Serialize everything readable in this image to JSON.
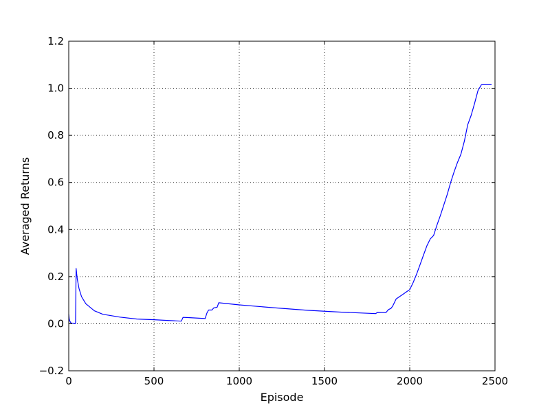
{
  "chart_data": {
    "type": "line",
    "title": "",
    "xlabel": "Episode",
    "ylabel": "Averaged Returns",
    "xlim": [
      0,
      2500
    ],
    "ylim": [
      -0.2,
      1.2
    ],
    "xticks": [
      0,
      500,
      1000,
      1500,
      2000,
      2500
    ],
    "yticks": [
      -0.2,
      0.0,
      0.2,
      0.4,
      0.6,
      0.8,
      1.0,
      1.2
    ],
    "xtick_labels": [
      "0",
      "500",
      "1000",
      "1500",
      "2000",
      "2500"
    ],
    "ytick_labels": [
      "−0.2",
      "0.0",
      "0.2",
      "0.4",
      "0.6",
      "0.8",
      "1.0",
      "1.2"
    ],
    "grid": true,
    "legend": "none",
    "color": "#0000ff",
    "series": [
      {
        "x": [
          0,
          3,
          6,
          10,
          15,
          20,
          25,
          30,
          35,
          40,
          43,
          50,
          60,
          75,
          100,
          150,
          200,
          300,
          400,
          500,
          660,
          670,
          700,
          800,
          810,
          820,
          840,
          850,
          870,
          880,
          1000,
          1200,
          1400,
          1600,
          1800,
          1810,
          1860,
          1875,
          1890,
          1900,
          1920,
          1940,
          1960,
          1980,
          2000,
          2020,
          2040,
          2060,
          2080,
          2100,
          2120,
          2140,
          2160,
          2180,
          2200,
          2220,
          2240,
          2260,
          2280,
          2300,
          2320,
          2340,
          2360,
          2380,
          2400,
          2420,
          2440,
          2460,
          2480
        ],
        "y": [
          0.04,
          0.02,
          0.012,
          0.006,
          0.003,
          0.002,
          0.0015,
          0.001,
          0.001,
          0.001,
          0.235,
          0.19,
          0.15,
          0.115,
          0.085,
          0.055,
          0.04,
          0.028,
          0.02,
          0.017,
          0.011,
          0.027,
          0.026,
          0.022,
          0.045,
          0.058,
          0.058,
          0.067,
          0.07,
          0.089,
          0.08,
          0.068,
          0.057,
          0.049,
          0.043,
          0.048,
          0.047,
          0.06,
          0.065,
          0.075,
          0.105,
          0.115,
          0.125,
          0.135,
          0.145,
          0.175,
          0.21,
          0.25,
          0.29,
          0.33,
          0.36,
          0.375,
          0.42,
          0.46,
          0.505,
          0.55,
          0.6,
          0.645,
          0.685,
          0.72,
          0.775,
          0.845,
          0.885,
          0.935,
          0.99,
          1.015,
          1.015,
          1.015,
          1.015
        ]
      }
    ]
  }
}
